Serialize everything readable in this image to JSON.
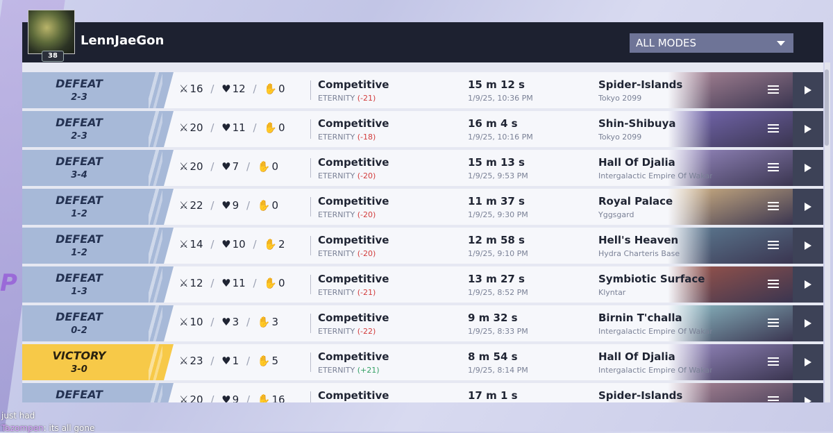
{
  "header": {
    "username": "LennJaeGon",
    "level": "38",
    "mode_filter": "ALL MODES"
  },
  "matches": [
    {
      "result": "DEFEAT",
      "score": "2-3",
      "kills": "16",
      "deaths": "12",
      "assists": "0",
      "mode": "Competitive",
      "rank_name": "ETERNITY",
      "rank_change": "(-21)",
      "rank_sign": "neg",
      "duration": "15 m 12 s",
      "datetime": "1/9/25, 10:36 PM",
      "map": "Spider-Islands",
      "region": "Tokyo 2099",
      "art": "#b08a9a"
    },
    {
      "result": "DEFEAT",
      "score": "2-3",
      "kills": "20",
      "deaths": "11",
      "assists": "0",
      "mode": "Competitive",
      "rank_name": "ETERNITY",
      "rank_change": "(-18)",
      "rank_sign": "neg",
      "duration": "16 m 4 s",
      "datetime": "1/9/25, 10:16 PM",
      "map": "Shin-Shibuya",
      "region": "Tokyo 2099",
      "art": "#7a6cb8"
    },
    {
      "result": "DEFEAT",
      "score": "3-4",
      "kills": "20",
      "deaths": "7",
      "assists": "0",
      "mode": "Competitive",
      "rank_name": "ETERNITY",
      "rank_change": "(-20)",
      "rank_sign": "neg",
      "duration": "15 m 13 s",
      "datetime": "1/9/25, 9:53 PM",
      "map": "Hall Of Djalia",
      "region": "Intergalactic Empire Of Wakanda",
      "art": "#9a8cc4"
    },
    {
      "result": "DEFEAT",
      "score": "1-2",
      "kills": "22",
      "deaths": "9",
      "assists": "0",
      "mode": "Competitive",
      "rank_name": "ETERNITY",
      "rank_change": "(-20)",
      "rank_sign": "neg",
      "duration": "11 m 37 s",
      "datetime": "1/9/25, 9:30 PM",
      "map": "Royal Palace",
      "region": "Yggsgard",
      "art": "#d8b886"
    },
    {
      "result": "DEFEAT",
      "score": "1-2",
      "kills": "14",
      "deaths": "10",
      "assists": "2",
      "mode": "Competitive",
      "rank_name": "ETERNITY",
      "rank_change": "(-20)",
      "rank_sign": "neg",
      "duration": "12 m 58 s",
      "datetime": "1/9/25, 9:10 PM",
      "map": "Hell's Heaven",
      "region": "Hydra Charteris Base",
      "art": "#5f7f96"
    },
    {
      "result": "DEFEAT",
      "score": "1-3",
      "kills": "12",
      "deaths": "11",
      "assists": "0",
      "mode": "Competitive",
      "rank_name": "ETERNITY",
      "rank_change": "(-21)",
      "rank_sign": "neg",
      "duration": "13 m 27 s",
      "datetime": "1/9/25, 8:52 PM",
      "map": "Symbiotic Surface",
      "region": "Klyntar",
      "art": "#a0564a"
    },
    {
      "result": "DEFEAT",
      "score": "0-2",
      "kills": "10",
      "deaths": "3",
      "assists": "3",
      "mode": "Competitive",
      "rank_name": "ETERNITY",
      "rank_change": "(-22)",
      "rank_sign": "neg",
      "duration": "9 m 32 s",
      "datetime": "1/9/25, 8:33 PM",
      "map": "Birnin T'challa",
      "region": "Intergalactic Empire Of Wakanda",
      "art": "#8fbfc8"
    },
    {
      "result": "VICTORY",
      "score": "3-0",
      "kills": "23",
      "deaths": "1",
      "assists": "5",
      "mode": "Competitive",
      "rank_name": "ETERNITY",
      "rank_change": "(+21)",
      "rank_sign": "pos",
      "duration": "8 m 54 s",
      "datetime": "1/9/25, 8:14 PM",
      "map": "Hall Of Djalia",
      "region": "Intergalactic Empire Of Wakanda",
      "art": "#9a8cc4"
    },
    {
      "result": "DEFEAT",
      "score": "",
      "kills": "20",
      "deaths": "9",
      "assists": "16",
      "mode": "Competitive",
      "rank_name": "",
      "rank_change": "",
      "rank_sign": "neg",
      "duration": "17 m 1 s",
      "datetime": "",
      "map": "Spider-Islands",
      "region": "",
      "art": "#b08a9a"
    }
  ],
  "chat": [
    {
      "user": "",
      "text": "just had"
    },
    {
      "user": "Tazompen",
      "text": ": its all gone"
    }
  ],
  "icons": {
    "kills": "crossed-swords-icon",
    "deaths": "broken-heart-icon",
    "assists": "helping-hand-icon",
    "details": "menu-icon",
    "replay": "play-icon"
  }
}
